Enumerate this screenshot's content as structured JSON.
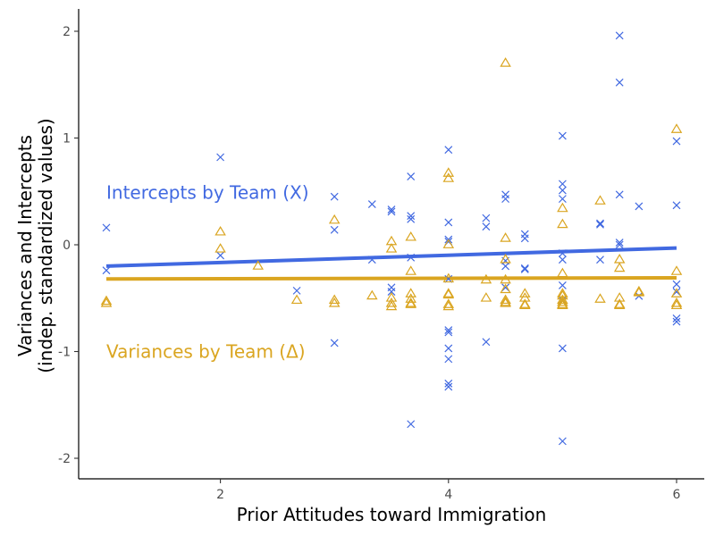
{
  "chart_data": {
    "type": "scatter",
    "xlabel": "Prior Attitudes toward Immigration",
    "ylabel": [
      "Variances and Intercepts",
      "(indep. standardized values)"
    ],
    "xlim": [
      0.75,
      6.25
    ],
    "ylim": [
      -2.2,
      2.2
    ],
    "x_ticks": [
      2,
      4,
      6
    ],
    "x_tick_labels": [
      "2",
      "4",
      "6"
    ],
    "y_ticks": [
      -2,
      -1,
      0,
      1,
      2
    ],
    "y_tick_labels": [
      "-2",
      "-1",
      "0",
      "1",
      "2"
    ],
    "grid": false,
    "series": [
      {
        "name": "Intercepts by Team (X)",
        "marker": "x",
        "color": "#4169E1",
        "fit": {
          "x": [
            1,
            6
          ],
          "y": [
            -0.2,
            -0.03
          ]
        },
        "points": [
          [
            1,
            0.16
          ],
          [
            1,
            -0.24
          ],
          [
            2,
            0.82
          ],
          [
            2,
            -0.1
          ],
          [
            2.67,
            -0.43
          ],
          [
            3,
            0.45
          ],
          [
            3,
            0.14
          ],
          [
            3,
            -0.92
          ],
          [
            3.33,
            0.38
          ],
          [
            3.33,
            -0.14
          ],
          [
            3.5,
            0.33
          ],
          [
            3.5,
            0.31
          ],
          [
            3.5,
            -0.4
          ],
          [
            3.5,
            -0.44
          ],
          [
            3.67,
            0.64
          ],
          [
            3.67,
            0.27
          ],
          [
            3.67,
            0.24
          ],
          [
            3.67,
            -0.12
          ],
          [
            3.67,
            -1.68
          ],
          [
            4,
            0.89
          ],
          [
            4,
            0.21
          ],
          [
            4,
            0.05
          ],
          [
            4,
            0.03
          ],
          [
            4,
            -0.32
          ],
          [
            4,
            -0.8
          ],
          [
            4,
            -0.82
          ],
          [
            4,
            -0.97
          ],
          [
            4,
            -1.07
          ],
          [
            4,
            -1.3
          ],
          [
            4,
            -1.33
          ],
          [
            4.33,
            0.25
          ],
          [
            4.33,
            0.17
          ],
          [
            4.33,
            -0.91
          ],
          [
            4.5,
            0.47
          ],
          [
            4.5,
            0.43
          ],
          [
            4.5,
            -0.15
          ],
          [
            4.5,
            -0.2
          ],
          [
            4.5,
            -0.4
          ],
          [
            4.67,
            0.1
          ],
          [
            4.67,
            0.06
          ],
          [
            4.67,
            -0.22
          ],
          [
            4.67,
            -0.23
          ],
          [
            5,
            1.02
          ],
          [
            5,
            0.57
          ],
          [
            5,
            0.51
          ],
          [
            5,
            0.43
          ],
          [
            5,
            -0.08
          ],
          [
            5,
            -0.14
          ],
          [
            5,
            -0.38
          ],
          [
            5,
            -0.52
          ],
          [
            5,
            -0.97
          ],
          [
            5,
            -1.84
          ],
          [
            5.33,
            0.2
          ],
          [
            5.33,
            0.19
          ],
          [
            5.33,
            -0.14
          ],
          [
            5.5,
            1.96
          ],
          [
            5.5,
            1.52
          ],
          [
            5.5,
            0.47
          ],
          [
            5.5,
            0.02
          ],
          [
            5.5,
            0.0
          ],
          [
            5.67,
            0.36
          ],
          [
            5.67,
            -0.48
          ],
          [
            6,
            0.97
          ],
          [
            6,
            0.37
          ],
          [
            6,
            -0.37
          ],
          [
            6,
            -0.44
          ],
          [
            6,
            -0.69
          ],
          [
            6,
            -0.72
          ]
        ]
      },
      {
        "name": "Variances by Team (Δ)",
        "marker": "triangle",
        "color": "#DAA520",
        "fit": {
          "x": [
            1,
            6
          ],
          "y": [
            -0.32,
            -0.31
          ]
        },
        "points": [
          [
            1,
            -0.53
          ],
          [
            1,
            -0.55
          ],
          [
            2,
            0.12
          ],
          [
            2,
            -0.04
          ],
          [
            2.33,
            -0.2
          ],
          [
            2.67,
            -0.52
          ],
          [
            3,
            0.23
          ],
          [
            3,
            -0.52
          ],
          [
            3,
            -0.55
          ],
          [
            3.33,
            -0.48
          ],
          [
            3.5,
            0.03
          ],
          [
            3.5,
            -0.04
          ],
          [
            3.5,
            -0.5
          ],
          [
            3.5,
            -0.55
          ],
          [
            3.5,
            -0.58
          ],
          [
            3.67,
            0.07
          ],
          [
            3.67,
            -0.25
          ],
          [
            3.67,
            -0.46
          ],
          [
            3.67,
            -0.51
          ],
          [
            3.67,
            -0.55
          ],
          [
            3.67,
            -0.56
          ],
          [
            4,
            0.67
          ],
          [
            4,
            0.62
          ],
          [
            4,
            0.0
          ],
          [
            4,
            -0.32
          ],
          [
            4,
            -0.46
          ],
          [
            4,
            -0.47
          ],
          [
            4,
            -0.56
          ],
          [
            4,
            -0.58
          ],
          [
            4.33,
            -0.33
          ],
          [
            4.33,
            -0.5
          ],
          [
            4.5,
            1.7
          ],
          [
            4.5,
            0.06
          ],
          [
            4.5,
            -0.14
          ],
          [
            4.5,
            -0.33
          ],
          [
            4.5,
            -0.42
          ],
          [
            4.5,
            -0.52
          ],
          [
            4.5,
            -0.54
          ],
          [
            4.5,
            -0.55
          ],
          [
            4.67,
            -0.46
          ],
          [
            4.67,
            -0.5
          ],
          [
            4.67,
            -0.56
          ],
          [
            4.67,
            -0.57
          ],
          [
            5,
            0.34
          ],
          [
            5,
            0.19
          ],
          [
            5,
            -0.27
          ],
          [
            5,
            -0.46
          ],
          [
            5,
            -0.48
          ],
          [
            5,
            -0.52
          ],
          [
            5,
            -0.54
          ],
          [
            5,
            -0.56
          ],
          [
            5,
            -0.57
          ],
          [
            5.33,
            0.41
          ],
          [
            5.33,
            -0.51
          ],
          [
            5.5,
            -0.14
          ],
          [
            5.5,
            -0.22
          ],
          [
            5.5,
            -0.5
          ],
          [
            5.5,
            -0.56
          ],
          [
            5.5,
            -0.57
          ],
          [
            5.67,
            -0.44
          ],
          [
            5.67,
            -0.45
          ],
          [
            6,
            1.08
          ],
          [
            6,
            -0.25
          ],
          [
            6,
            -0.46
          ],
          [
            6,
            -0.55
          ],
          [
            6,
            -0.57
          ]
        ]
      }
    ],
    "annotations": [
      {
        "text": "Intercepts by Team (X)",
        "x": 1.0,
        "y": 0.49,
        "color": "#4169E1"
      },
      {
        "text": "Variances by Team (Δ)",
        "x": 1.0,
        "y": -1.0,
        "color": "#DAA520"
      }
    ]
  }
}
